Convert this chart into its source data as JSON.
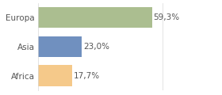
{
  "categories": [
    "Africa",
    "Asia",
    "Europa"
  ],
  "values": [
    17.7,
    23.0,
    59.3
  ],
  "bar_colors": [
    "#f5c98a",
    "#7090bf",
    "#abbe90"
  ],
  "labels": [
    "17,7%",
    "23,0%",
    "59,3%"
  ],
  "xlim": [
    0,
    75
  ],
  "background_color": "#ffffff",
  "label_fontsize": 7.5,
  "tick_fontsize": 7.5,
  "bar_height": 0.72,
  "grid_color": "#d8d8d8",
  "text_color": "#555555"
}
